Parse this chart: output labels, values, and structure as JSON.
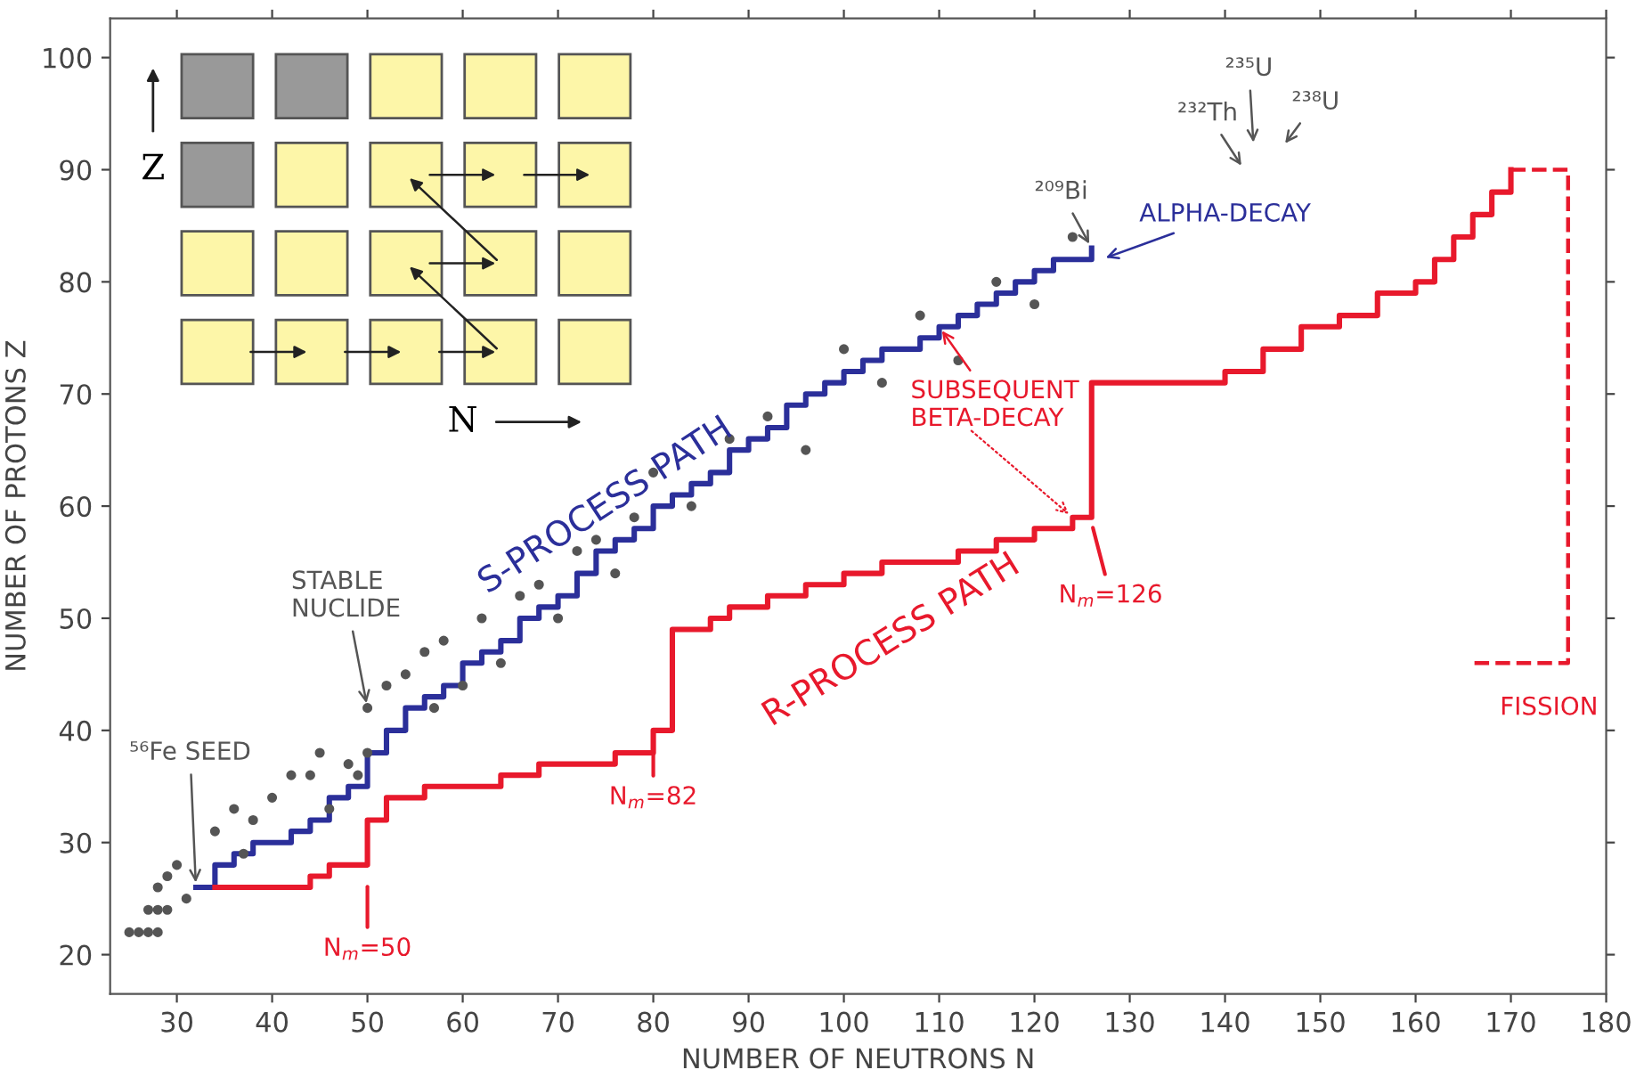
{
  "chart_data": {
    "type": "step",
    "xlabel": "NUMBER OF NEUTRONS N",
    "ylabel": "NUMBER OF PROTONS Z",
    "xlim": [
      23,
      180
    ],
    "ylim": [
      16.5,
      103.5
    ],
    "xticks": [
      30,
      40,
      50,
      60,
      70,
      80,
      90,
      100,
      110,
      120,
      130,
      140,
      150,
      160,
      170,
      180
    ],
    "yticks": [
      20,
      30,
      40,
      50,
      60,
      70,
      80,
      90,
      100
    ],
    "grid": false,
    "legend": false,
    "series": [
      {
        "type": "step",
        "color": "#2b2f9a",
        "x": [
          32,
          34,
          36,
          38,
          40,
          42,
          44,
          46,
          48,
          50,
          52,
          54,
          56,
          58,
          60,
          62,
          64,
          66,
          68,
          70,
          72,
          74,
          76,
          78,
          80,
          82,
          84,
          86,
          88,
          90,
          92,
          94,
          96,
          98,
          100,
          102,
          104,
          106,
          108,
          110,
          112,
          114,
          116,
          118,
          120,
          122,
          124,
          126
        ],
        "values": [
          26,
          28,
          29,
          30,
          30,
          31,
          32,
          34,
          35,
          38,
          40,
          42,
          43,
          44,
          46,
          47,
          48,
          50,
          51,
          52,
          54,
          56,
          57,
          58,
          60,
          61,
          62,
          63,
          65,
          66,
          67,
          69,
          70,
          71,
          72,
          73,
          74,
          74,
          75,
          76,
          77,
          78,
          79,
          80,
          81,
          82,
          82,
          83
        ]
      },
      {
        "type": "step",
        "color": "#e8192c",
        "x": [
          34,
          42,
          44,
          46,
          50,
          52,
          56,
          60,
          64,
          68,
          72,
          76,
          80,
          82,
          84,
          86,
          88,
          92,
          96,
          100,
          104,
          108,
          112,
          116,
          120,
          124,
          126,
          136,
          140,
          144,
          148,
          152,
          156,
          160,
          162,
          164,
          166,
          168,
          170
        ],
        "values": [
          26,
          26,
          27,
          28,
          32,
          34,
          35,
          35,
          36,
          37,
          37,
          38,
          40,
          49,
          49,
          50,
          51,
          52,
          53,
          54,
          55,
          55,
          56,
          57,
          58,
          59,
          71,
          71,
          72,
          74,
          76,
          77,
          79,
          80,
          82,
          84,
          86,
          88,
          90
        ]
      },
      {
        "type": "line",
        "color": "#e8192c",
        "line_style": "dashed",
        "x": [
          170,
          176,
          176,
          166
        ],
        "values": [
          90,
          90,
          46,
          46
        ]
      },
      {
        "type": "scatter",
        "color": "#555555",
        "marker": "circle",
        "x": [
          25,
          26,
          27,
          28,
          27,
          28,
          29,
          28,
          29,
          30,
          31,
          34,
          36,
          37,
          38,
          40,
          42,
          44,
          45,
          46,
          48,
          49,
          50,
          50,
          52,
          54,
          56,
          57,
          58,
          60,
          62,
          64,
          66,
          68,
          70,
          72,
          74,
          76,
          78,
          80,
          84,
          88,
          92,
          96,
          100,
          104,
          108,
          112,
          116,
          120,
          124
        ],
        "values": [
          22,
          22,
          22,
          22,
          24,
          24,
          24,
          26,
          27,
          28,
          25,
          31,
          33,
          29,
          32,
          34,
          36,
          36,
          38,
          33,
          37,
          36,
          42,
          38,
          44,
          45,
          47,
          42,
          48,
          44,
          50,
          46,
          52,
          53,
          50,
          56,
          57,
          54,
          59,
          63,
          60,
          66,
          68,
          65,
          74,
          71,
          77,
          73,
          80,
          78,
          84
        ]
      }
    ],
    "annotations": [
      {
        "text": "STABLE\nNUCLIDE",
        "x": 50,
        "y": 42
      },
      {
        "text": "⁵⁶Fe SEED",
        "x": 32,
        "y": 26
      },
      {
        "text": "²⁰⁹Bi",
        "x": 126,
        "y": 83
      },
      "²³²Th",
      "²³⁵U",
      "²³⁸U",
      "ALPHA-DECAY",
      {
        "text": "SUBSEQUENT\nBETA-DECAY",
        "x": 110,
        "y": 76
      },
      "N$_{m}$=50",
      {
        "text": "N$_{m}$=82",
        "x": 80,
        "y": 40
      },
      "N$_{m}$=126",
      "FISSION",
      "S-PROCESS PATH",
      "R-PROCESS PATH",
      "Z",
      "N"
    ]
  }
}
